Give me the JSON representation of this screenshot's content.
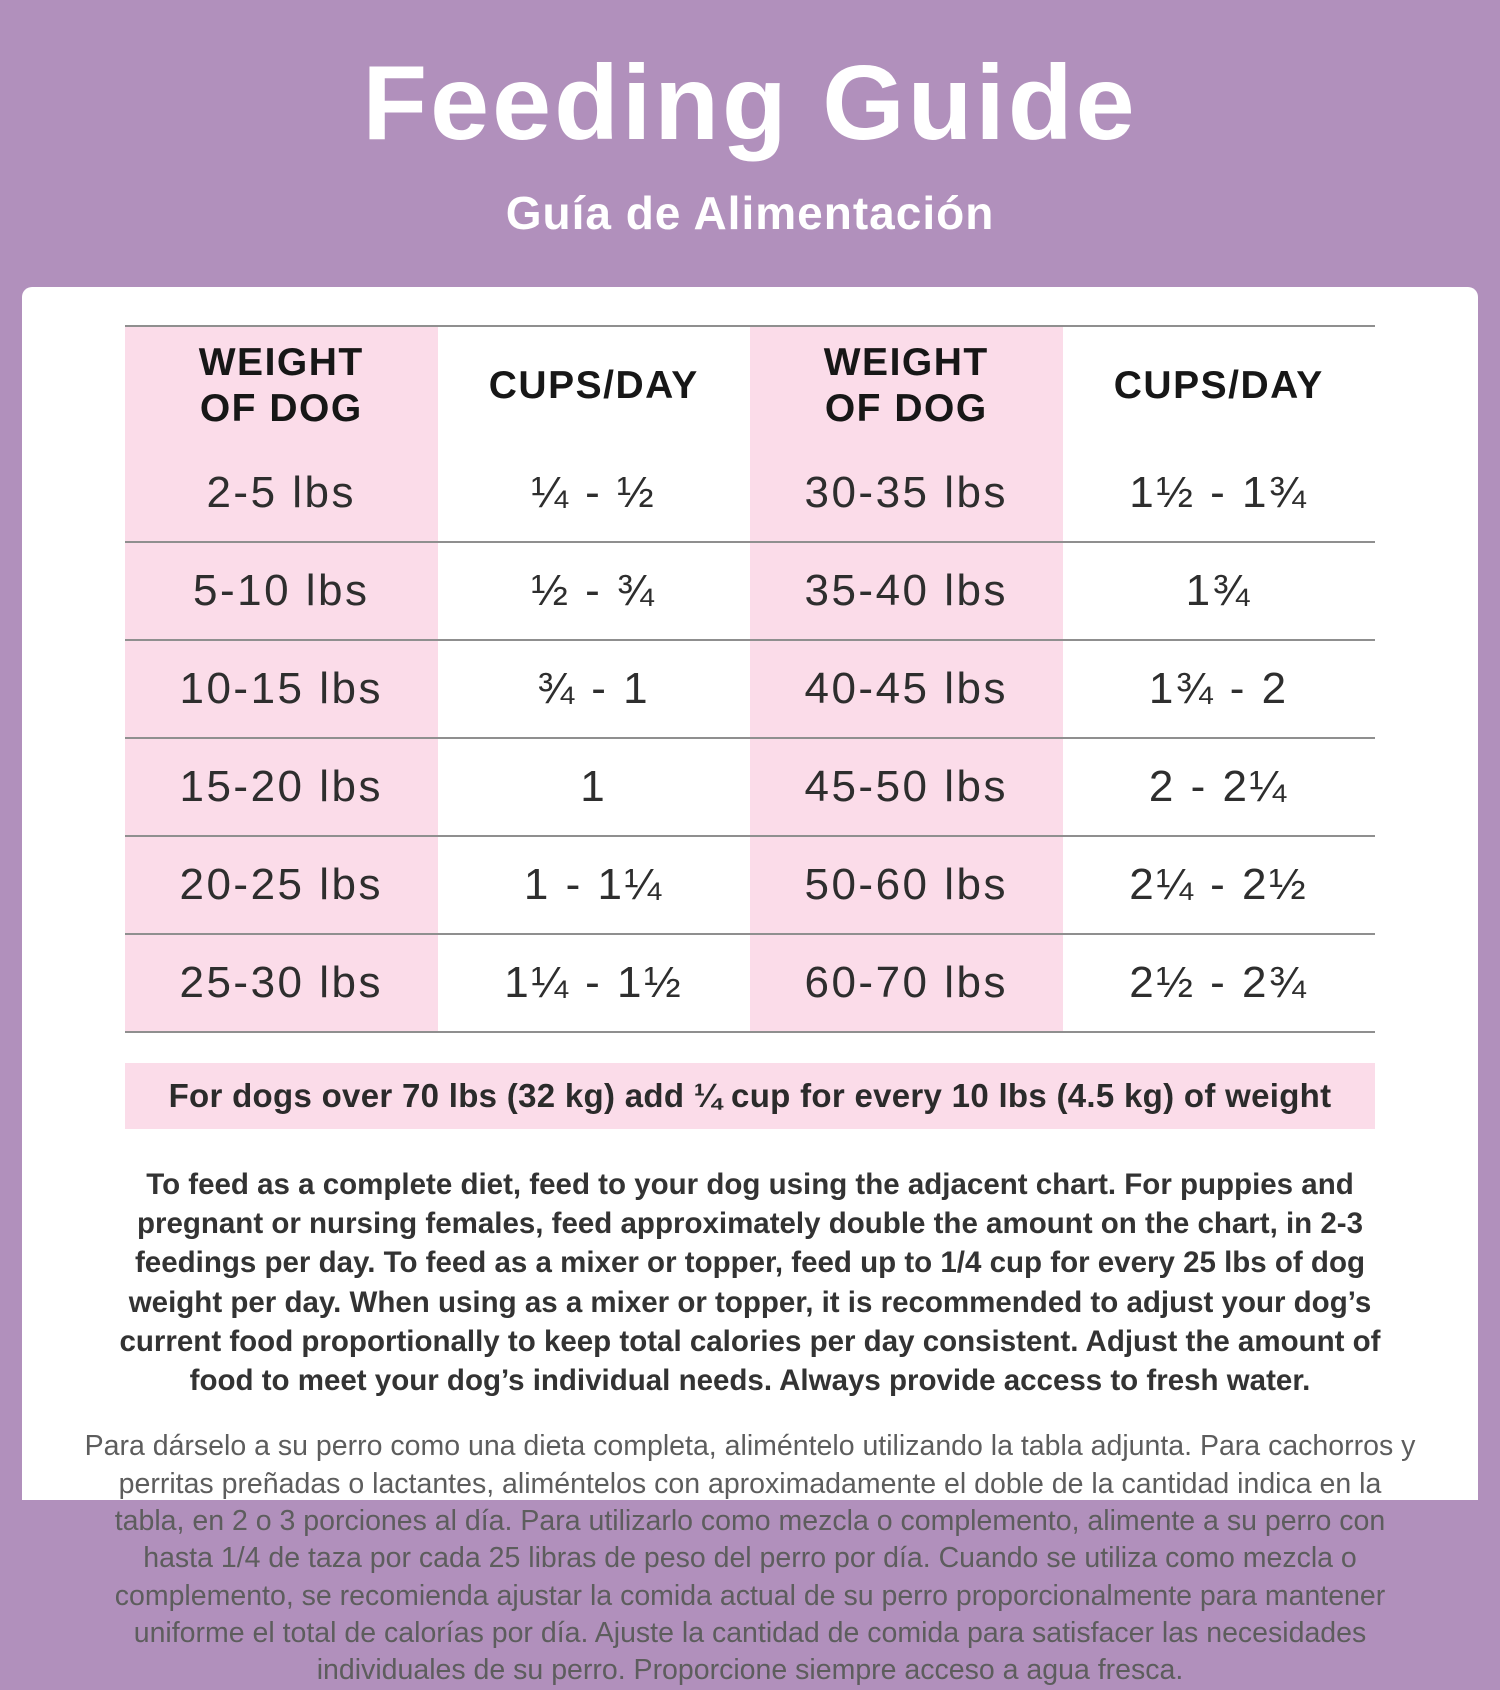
{
  "header": {
    "title": "Feeding Guide",
    "subtitle": "Guía de Alimentación"
  },
  "table": {
    "headers": [
      "WEIGHT OF DOG",
      "CUPS/DAY",
      "WEIGHT OF DOG",
      "CUPS/DAY"
    ],
    "rows": [
      [
        "2-5 lbs",
        "¼ - ½",
        "30-35 lbs",
        "1½ - 1¾"
      ],
      [
        "5-10 lbs",
        "½ - ¾",
        "35-40 lbs",
        "1¾"
      ],
      [
        "10-15 lbs",
        "¾ - 1",
        "40-45 lbs",
        "1¾ - 2"
      ],
      [
        "15-20 lbs",
        "1",
        "45-50 lbs",
        "2 - 2¼"
      ],
      [
        "20-25 lbs",
        "1 - 1¼",
        "50-60 lbs",
        "2¼ - 2½"
      ],
      [
        "25-30 lbs",
        "1¼ - 1½",
        "60-70 lbs",
        "2½ - 2¾"
      ]
    ]
  },
  "banner": {
    "text": "For dogs over 70 lbs (32 kg) add ¼ cup for every 10 lbs (4.5 kg) of weight"
  },
  "notes": {
    "english": "To feed as a complete diet, feed to your dog using the adjacent chart. For puppies and pregnant or nursing females, feed approximately double the amount on the chart, in 2-3 feedings per day. To feed as a mixer or topper, feed up to 1/4 cup for every 25 lbs of dog weight per day. When using as a mixer or topper, it is recommended to adjust your dog’s current food proportionally to keep total calories per day consistent. Adjust the amount of food to meet your dog’s individual needs. Always provide access to fresh water.",
    "spanish": "Para dárselo a su perro como una dieta completa, aliméntelo utilizando la tabla adjunta. Para cachorros y perritas preñadas o lactantes, aliméntelos con aproximadamente el doble de la cantidad indica en la tabla, en 2 o 3 porciones al día. Para utilizarlo como mezcla o complemento, alimente a su perro con hasta 1/4 de taza por cada 25 libras de peso del perro por día. Cuando se utiliza como mezcla o complemento, se recomienda ajustar la comida actual de su perro proporcionalmente para mantener uniforme el total de calorías por día. Ajuste la cantidad de comida para satisfacer las necesidades individuales de su perro. Proporcione siempre acceso a agua fresca."
  },
  "colors": {
    "background_purple": "#b190bc",
    "accent_pink": "#fbdce9",
    "text_dark": "#2e2e2e",
    "divider_gray": "#8f8f8f"
  }
}
